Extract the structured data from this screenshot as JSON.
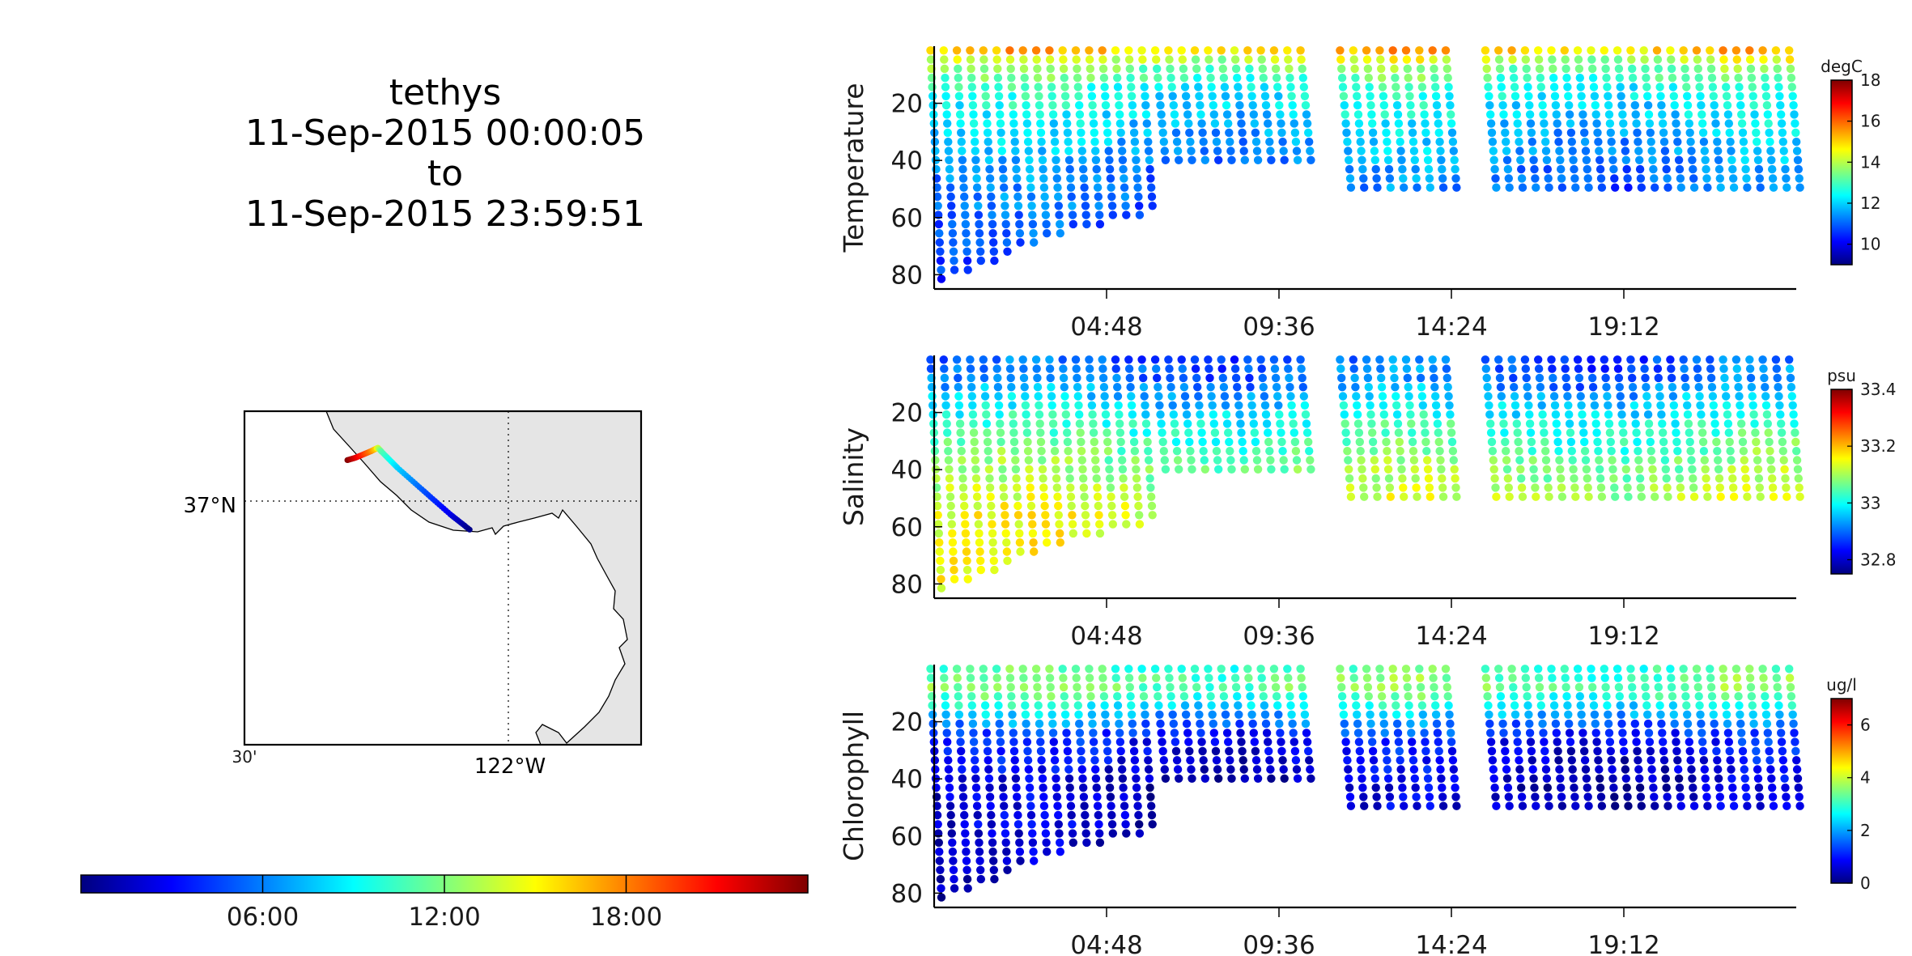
{
  "header": {
    "platform": "tethys",
    "start": "11-Sep-2015 00:00:05",
    "to": "to",
    "end": "11-Sep-2015 23:59:51"
  },
  "colors": {
    "jet": [
      "#00007f",
      "#0000ff",
      "#007fff",
      "#00ffff",
      "#7fff7f",
      "#ffff00",
      "#ff7f00",
      "#ff0000",
      "#7f0000"
    ],
    "land": "#e5e5e5",
    "axis": "#000000"
  },
  "chart_data": [
    {
      "type": "map",
      "name": "track-map",
      "lat_label": "37°N",
      "lon_labels": [
        "30'",
        "122°W"
      ],
      "time_colorbar": {
        "ticks": [
          "06:00",
          "12:00",
          "18:00"
        ],
        "range_hours": [
          0,
          24
        ]
      },
      "track": [
        {
          "lon": -122.305,
          "lat": 37.123,
          "hour": 24.0
        },
        {
          "lon": -122.29,
          "lat": 37.13,
          "hour": 22.0
        },
        {
          "lon": -122.275,
          "lat": 37.14,
          "hour": 20.0
        },
        {
          "lon": -122.26,
          "lat": 37.15,
          "hour": 18.0
        },
        {
          "lon": -122.25,
          "lat": 37.158,
          "hour": 16.0
        },
        {
          "lon": -122.247,
          "lat": 37.16,
          "hour": 14.0
        },
        {
          "lon": -122.24,
          "lat": 37.148,
          "hour": 11.0
        },
        {
          "lon": -122.21,
          "lat": 37.1,
          "hour": 8.0
        },
        {
          "lon": -122.16,
          "lat": 37.03,
          "hour": 5.0
        },
        {
          "lon": -122.11,
          "lat": 36.96,
          "hour": 2.5
        },
        {
          "lon": -122.07,
          "lat": 36.91,
          "hour": 0.0
        }
      ]
    },
    {
      "type": "scatter",
      "name": "temperature",
      "ylabel": "Temperature",
      "unit": "degC",
      "xticks": [
        "04:48",
        "09:36",
        "14:24",
        "19:12"
      ],
      "yticks": [
        20,
        40,
        60,
        80
      ],
      "ylim": [
        0,
        85
      ],
      "xlim_hours": [
        0,
        24
      ],
      "clim": [
        9,
        18
      ],
      "cticks": [
        10,
        12,
        14,
        16,
        18
      ],
      "max_depth_by_hour": [
        [
          0,
          83
        ],
        [
          1,
          78
        ],
        [
          2,
          73
        ],
        [
          3,
          68
        ],
        [
          4,
          64
        ],
        [
          5,
          61
        ],
        [
          6,
          58
        ],
        [
          6.3,
          42
        ],
        [
          10.5,
          42
        ],
        [
          10.5,
          0
        ],
        [
          11.2,
          0
        ],
        [
          11.2,
          50
        ],
        [
          24,
          50
        ]
      ],
      "gaps_hours": [
        [
          10.5,
          11.2
        ],
        [
          14.5,
          15.2
        ]
      ],
      "profile": [
        [
          0,
          15.5
        ],
        [
          5,
          14.0
        ],
        [
          15,
          12.5
        ],
        [
          30,
          11.8
        ],
        [
          45,
          11.2
        ],
        [
          60,
          10.8
        ],
        [
          85,
          10.5
        ]
      ]
    },
    {
      "type": "scatter",
      "name": "salinity",
      "ylabel": "Salinity",
      "unit": "psu",
      "xticks": [
        "04:48",
        "09:36",
        "14:24",
        "19:12"
      ],
      "yticks": [
        20,
        40,
        60,
        80
      ],
      "ylim": [
        0,
        85
      ],
      "xlim_hours": [
        0,
        24
      ],
      "clim": [
        32.75,
        33.4
      ],
      "cticks": [
        32.8,
        33,
        33.2,
        33.4
      ],
      "max_depth_by_hour": [
        [
          0,
          83
        ],
        [
          1,
          78
        ],
        [
          2,
          73
        ],
        [
          3,
          68
        ],
        [
          4,
          64
        ],
        [
          5,
          61
        ],
        [
          6,
          58
        ],
        [
          6.3,
          42
        ],
        [
          10.5,
          42
        ],
        [
          10.5,
          0
        ],
        [
          11.2,
          0
        ],
        [
          11.2,
          50
        ],
        [
          24,
          50
        ]
      ],
      "gaps_hours": [
        [
          10.5,
          11.2
        ],
        [
          14.5,
          15.2
        ]
      ],
      "profile": [
        [
          0,
          32.88
        ],
        [
          10,
          32.92
        ],
        [
          25,
          33.02
        ],
        [
          40,
          33.08
        ],
        [
          55,
          33.13
        ],
        [
          85,
          33.16
        ]
      ]
    },
    {
      "type": "scatter",
      "name": "chlorophyll",
      "ylabel": "Chlorophyll",
      "unit": "ug/l",
      "xticks": [
        "04:48",
        "09:36",
        "14:24",
        "19:12"
      ],
      "yticks": [
        20,
        40,
        60,
        80
      ],
      "ylim": [
        0,
        85
      ],
      "xlim_hours": [
        0,
        24
      ],
      "clim": [
        0,
        7
      ],
      "cticks": [
        0,
        2,
        4,
        6
      ],
      "max_depth_by_hour": [
        [
          0,
          83
        ],
        [
          1,
          78
        ],
        [
          2,
          73
        ],
        [
          3,
          68
        ],
        [
          4,
          64
        ],
        [
          5,
          61
        ],
        [
          6,
          58
        ],
        [
          6.3,
          42
        ],
        [
          10.5,
          42
        ],
        [
          10.5,
          0
        ],
        [
          11.2,
          0
        ],
        [
          11.2,
          50
        ],
        [
          24,
          50
        ]
      ],
      "gaps_hours": [
        [
          10.5,
          11.2
        ],
        [
          14.5,
          15.2
        ]
      ],
      "profile": [
        [
          0,
          3.0
        ],
        [
          8,
          3.5
        ],
        [
          15,
          2.5
        ],
        [
          25,
          1.0
        ],
        [
          40,
          0.5
        ],
        [
          85,
          0.3
        ]
      ]
    }
  ]
}
